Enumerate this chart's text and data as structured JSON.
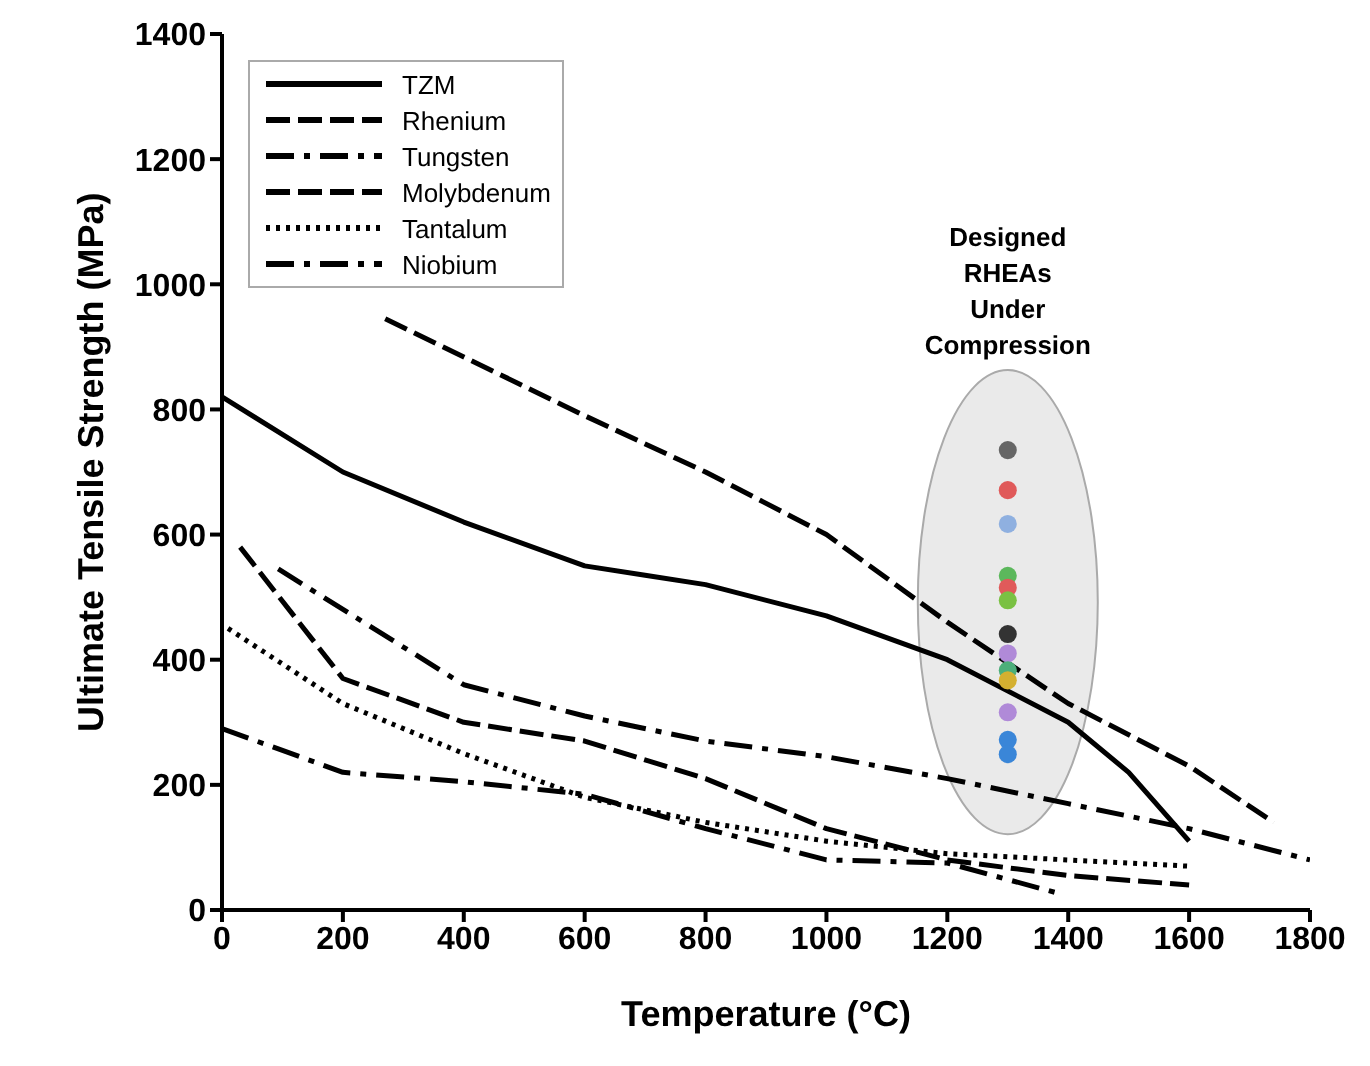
{
  "chart_data": {
    "type": "line",
    "xlabel": "Temperature (°C)",
    "ylabel": "Ultimate Tensile Strength (MPa)",
    "xlim": [
      0,
      1800
    ],
    "xticks": [
      0,
      200,
      400,
      600,
      800,
      1000,
      1200,
      1400,
      1600,
      1800
    ],
    "ylim": [
      0,
      1400
    ],
    "yticks": [
      0,
      200,
      400,
      600,
      800,
      1000,
      1200,
      1400
    ],
    "grid": false,
    "legend": "top left",
    "marker": "none",
    "annotations": [
      "Designed RHEAs Under Compression"
    ],
    "series": [
      {
        "name": "TZM",
        "color": "#000000",
        "line_style": "solid",
        "x": [
          0,
          200,
          400,
          600,
          700,
          800,
          1000,
          1200,
          1400,
          1500,
          1600
        ],
        "values": [
          820,
          700,
          620,
          550,
          535,
          520,
          470,
          400,
          300,
          220,
          110
        ]
      },
      {
        "name": "Rhenium",
        "color": "#000000",
        "line_style": "dashed",
        "x": [
          270,
          600,
          800,
          1000,
          1200,
          1400,
          1600,
          1740
        ],
        "values": [
          945,
          790,
          700,
          600,
          460,
          330,
          230,
          140
        ]
      },
      {
        "name": "Tungsten",
        "color": "#000000",
        "line_style": "dashdot",
        "x": [
          93,
          400,
          600,
          800,
          1000,
          1200,
          1400,
          1600,
          1800
        ],
        "values": [
          545,
          360,
          310,
          270,
          245,
          210,
          170,
          130,
          80
        ]
      },
      {
        "name": "Molybdenum",
        "color": "#000000",
        "line_style": "dashed",
        "x": [
          30,
          200,
          400,
          600,
          800,
          1000,
          1200,
          1400,
          1600
        ],
        "values": [
          580,
          370,
          300,
          270,
          210,
          130,
          80,
          55,
          40
        ]
      },
      {
        "name": "Tantalum",
        "color": "#000000",
        "line_style": "dotted",
        "x": [
          10,
          200,
          400,
          600,
          800,
          1000,
          1200,
          1400,
          1600
        ],
        "values": [
          450,
          330,
          250,
          180,
          140,
          110,
          90,
          80,
          70
        ]
      },
      {
        "name": "Niobium",
        "color": "#000000",
        "line_style": "dashdot",
        "x": [
          0,
          200,
          400,
          600,
          800,
          1000,
          1200,
          1390
        ],
        "values": [
          290,
          220,
          205,
          185,
          130,
          80,
          75,
          25
        ]
      },
      {
        "type": "scatter",
        "marker": "circle",
        "x": [
          1300,
          1300,
          1300,
          1300,
          1300,
          1300,
          1300,
          1300,
          1300,
          1300,
          1300,
          1300,
          1300
        ],
        "values": [
          735,
          671,
          617,
          534,
          515,
          495,
          441,
          410,
          383,
          367,
          316,
          272,
          249
        ],
        "colors": [
          "#666666",
          "#e05a5a",
          "#8fb0e0",
          "#5cb85c",
          "#e05a5a",
          "#7ac143",
          "#333333",
          "#b08ad8",
          "#4caf7a",
          "#d4b030",
          "#b08ad8",
          "#3a86d8",
          "#3a86d8"
        ]
      }
    ]
  }
}
